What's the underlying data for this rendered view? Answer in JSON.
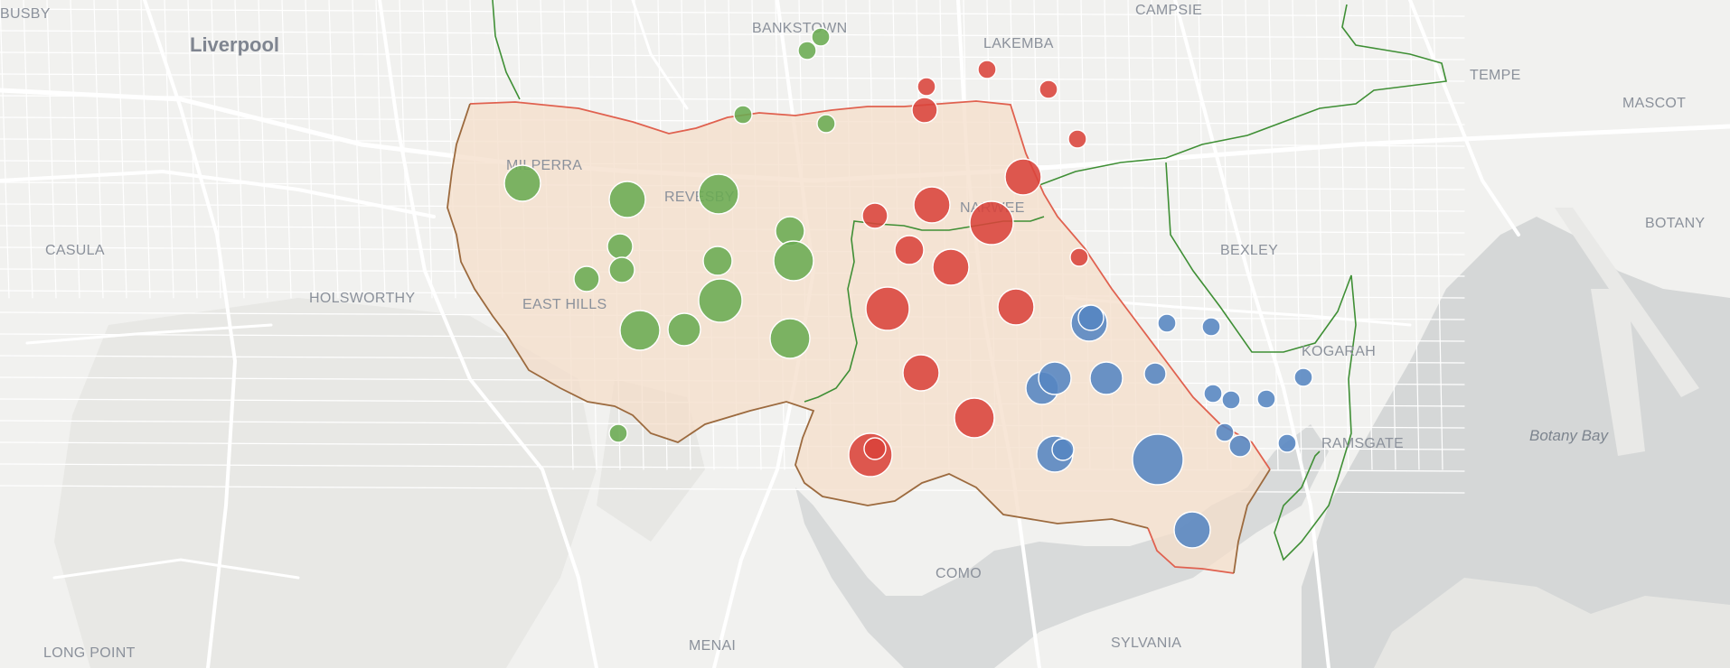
{
  "map": {
    "colors": {
      "land": "#f1f1ef",
      "park": "#e9e9e6",
      "water": "#d6d8d8",
      "road": "#ffffff",
      "region_fill": "#f3dcc8",
      "border_red": "#e0614f",
      "border_green": "#3f8f35",
      "border_brown": "#9c6a3e"
    },
    "labels": {
      "busby": "BUSBY",
      "liverpool": "Liverpool",
      "bankstown": "BANKSTOWN",
      "lakemba": "LAKEMBA",
      "campsie": "CAMPSIE",
      "tempe": "TEMPE",
      "mascot": "MASCOT",
      "milperra": "MILPERRA",
      "revesby": "REVESBY",
      "narwee": "NARWEE",
      "casula": "CASULA",
      "holsworthy": "HOLSWORTHY",
      "east_hills": "EAST HILLS",
      "bexley": "BEXLEY",
      "botany": "BOTANY",
      "kogarah": "KOGARAH",
      "botany_bay": "Botany Bay",
      "ramsgate": "RAMSGATE",
      "como": "COMO",
      "menai": "MENAI",
      "sylvania": "SYLVANIA",
      "long_point": "LONG POINT"
    },
    "marker_groups": {
      "green": {
        "color": "#6aab52"
      },
      "red": {
        "color": "#d9433b"
      },
      "blue": {
        "color": "#5585c2"
      }
    }
  }
}
